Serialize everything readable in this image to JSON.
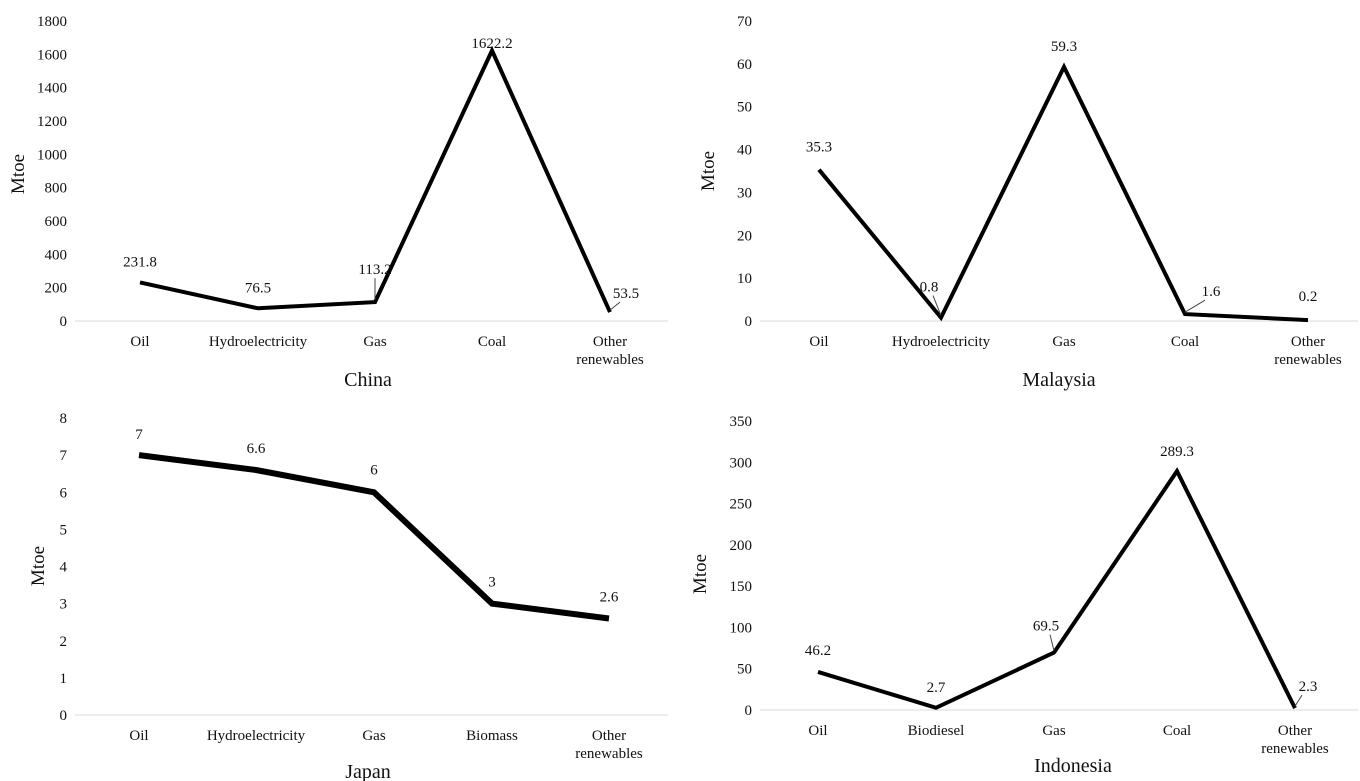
{
  "chart_data": [
    {
      "type": "line",
      "title": "China",
      "ylabel": "Mtoe",
      "categories": [
        "Oil",
        "Hydroelectricity",
        "Gas",
        "Coal",
        "Other renewables"
      ],
      "values": [
        231.8,
        76.5,
        113.2,
        1622.2,
        53.5
      ],
      "data_labels": [
        "231.8",
        "76.5",
        "113.2",
        "1622.2",
        "53.5"
      ],
      "yticks": [
        "0",
        "200",
        "400",
        "600",
        "800",
        "1000",
        "1200",
        "1400",
        "1600",
        "1800"
      ],
      "ylim": [
        0,
        1800
      ],
      "grid": false,
      "color": "#000000"
    },
    {
      "type": "line",
      "title": "Malaysia",
      "ylabel": "Mtoe",
      "categories": [
        "Oil",
        "Hydroelectricity",
        "Gas",
        "Coal",
        "Other renewables"
      ],
      "values": [
        35.3,
        0.8,
        59.3,
        1.6,
        0.2
      ],
      "data_labels": [
        "35.3",
        "0.8",
        "59.3",
        "1.6",
        "0.2"
      ],
      "yticks": [
        "0",
        "10",
        "20",
        "30",
        "40",
        "50",
        "60",
        "70"
      ],
      "ylim": [
        0,
        70
      ],
      "grid": false,
      "color": "#000000"
    },
    {
      "type": "line",
      "title": "Japan",
      "ylabel": "Mtoe",
      "categories": [
        "Oil",
        "Hydroelectricity",
        "Gas",
        "Biomass",
        "Other renewables"
      ],
      "values": [
        7,
        6.6,
        6,
        3,
        2.6
      ],
      "data_labels": [
        "7",
        "6.6",
        "6",
        "3",
        "2.6"
      ],
      "yticks": [
        "0",
        "1",
        "2",
        "3",
        "4",
        "5",
        "6",
        "7",
        "8"
      ],
      "ylim": [
        0,
        8
      ],
      "grid": false,
      "color": "#000000"
    },
    {
      "type": "line",
      "title": "Indonesia",
      "ylabel": "Mtoe",
      "categories": [
        "Oil",
        "Biodiesel",
        "Gas",
        "Coal",
        "Other renewables"
      ],
      "values": [
        46.2,
        2.7,
        69.5,
        289.3,
        2.3
      ],
      "data_labels": [
        "46.2",
        "2.7",
        "69.5",
        "289.3",
        "2.3"
      ],
      "yticks": [
        "0",
        "50",
        "100",
        "150",
        "200",
        "250",
        "300",
        "350"
      ],
      "ylim": [
        0,
        350
      ],
      "grid": false,
      "color": "#000000"
    }
  ]
}
